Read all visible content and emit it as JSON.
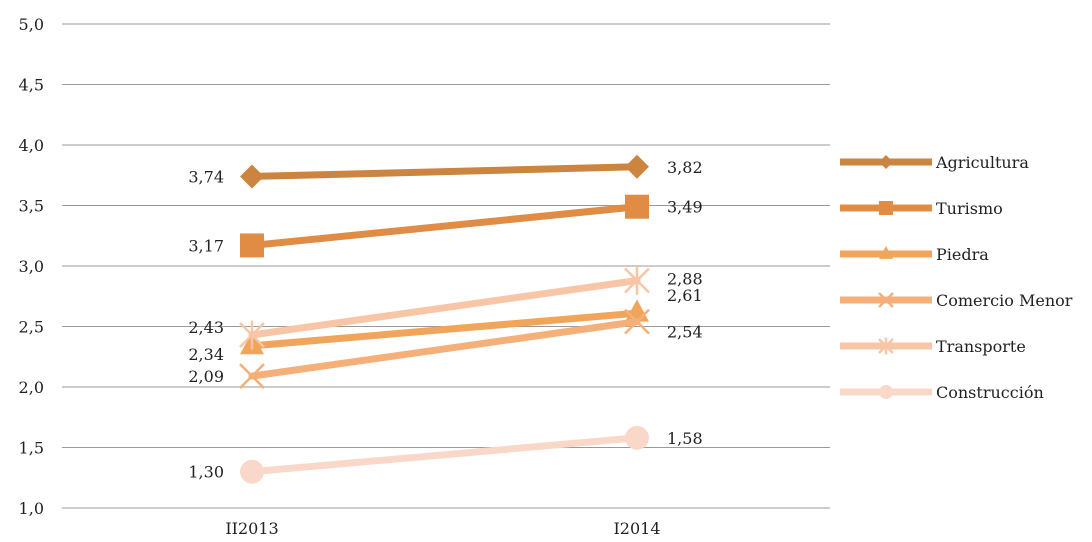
{
  "chart_data": {
    "type": "line",
    "title": "",
    "xlabel": "",
    "ylabel": "",
    "categories": [
      "II2013",
      "I2014"
    ],
    "ylim": [
      1.0,
      5.0
    ],
    "yticks": [
      "1,0",
      "1,5",
      "2,0",
      "2,5",
      "3,0",
      "3,5",
      "4,0",
      "4,5",
      "5,0"
    ],
    "grid": true,
    "legend_position": "right",
    "series": [
      {
        "name": "Agricultura",
        "values": [
          3.74,
          3.82
        ],
        "labels": [
          "3,74",
          "3,82"
        ],
        "color": "#cc8540",
        "marker": "diamond"
      },
      {
        "name": "Turismo",
        "values": [
          3.17,
          3.49
        ],
        "labels": [
          "3,17",
          "3,49"
        ],
        "color": "#e08c45",
        "marker": "square"
      },
      {
        "name": "Piedra",
        "values": [
          2.34,
          2.61
        ],
        "labels": [
          "2,34",
          "2,61"
        ],
        "color": "#f0a55a",
        "marker": "triangle"
      },
      {
        "name": "Comercio Menor",
        "values": [
          2.09,
          2.54
        ],
        "labels": [
          "2,09",
          "2,54"
        ],
        "color": "#f5b07a",
        "marker": "x"
      },
      {
        "name": "Transporte",
        "values": [
          2.43,
          2.88
        ],
        "labels": [
          "2,43",
          "2,88"
        ],
        "color": "#f8c6a6",
        "marker": "star"
      },
      {
        "name": "Construcción",
        "values": [
          1.3,
          1.58
        ],
        "labels": [
          "1,30",
          "1,58"
        ],
        "color": "#fad8c9",
        "marker": "circle"
      }
    ]
  }
}
